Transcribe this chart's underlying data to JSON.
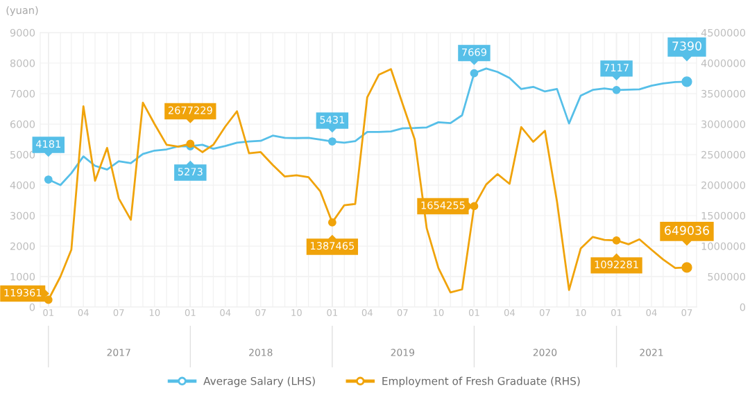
{
  "chart_data": {
    "type": "line",
    "ylabel": "(yuan)",
    "x": [
      "2017-01",
      "2017-02",
      "2017-03",
      "2017-04",
      "2017-05",
      "2017-06",
      "2017-07",
      "2017-08",
      "2017-09",
      "2017-10",
      "2017-11",
      "2017-12",
      "2018-01",
      "2018-02",
      "2018-03",
      "2018-04",
      "2018-05",
      "2018-06",
      "2018-07",
      "2018-08",
      "2018-09",
      "2018-10",
      "2018-11",
      "2018-12",
      "2019-01",
      "2019-02",
      "2019-03",
      "2019-04",
      "2019-05",
      "2019-06",
      "2019-07",
      "2019-08",
      "2019-09",
      "2019-10",
      "2019-11",
      "2019-12",
      "2020-01",
      "2020-02",
      "2020-03",
      "2020-04",
      "2020-05",
      "2020-06",
      "2020-07",
      "2020-08",
      "2020-09",
      "2020-10",
      "2020-11",
      "2020-12",
      "2021-01",
      "2021-02",
      "2021-03",
      "2021-04",
      "2021-05",
      "2021-06",
      "2021-07"
    ],
    "series": [
      {
        "name": "Average Salary (LHS)",
        "color": "#56bfe8",
        "axis": "y",
        "values": [
          4181,
          4000,
          4390,
          4940,
          4630,
          4510,
          4780,
          4720,
          5020,
          5130,
          5170,
          5270,
          5273,
          5320,
          5190,
          5280,
          5390,
          5430,
          5450,
          5620,
          5550,
          5540,
          5550,
          5490,
          5431,
          5390,
          5440,
          5740,
          5740,
          5760,
          5860,
          5870,
          5890,
          6060,
          6030,
          6290,
          7669,
          7820,
          7710,
          7510,
          7150,
          7220,
          7070,
          7150,
          6020,
          6930,
          7120,
          7170,
          7117,
          7130,
          7140,
          7260,
          7330,
          7380,
          7390
        ],
        "value_labels": [
          "4181",
          null,
          null,
          null,
          null,
          null,
          null,
          null,
          null,
          null,
          null,
          null,
          "5273",
          null,
          null,
          null,
          null,
          null,
          null,
          null,
          null,
          null,
          null,
          null,
          "5431",
          null,
          null,
          null,
          null,
          null,
          null,
          null,
          null,
          null,
          null,
          null,
          "7669",
          null,
          null,
          null,
          null,
          null,
          null,
          null,
          null,
          null,
          null,
          null,
          "7117",
          null,
          null,
          null,
          null,
          null,
          "7390"
        ]
      },
      {
        "name": "Employment of Fresh Graduate (RHS)",
        "color": "#f0a30a",
        "axis": "y2",
        "values": [
          119361,
          500000,
          940000,
          3290000,
          2070000,
          2610000,
          1780000,
          1430000,
          3350000,
          3000000,
          2660000,
          2630000,
          2677229,
          2540000,
          2660000,
          2960000,
          3210000,
          2520000,
          2540000,
          2330000,
          2140000,
          2160000,
          2130000,
          1900000,
          1387465,
          1670000,
          1690000,
          3440000,
          3810000,
          3900000,
          3330000,
          2750000,
          1290000,
          640000,
          240000,
          290000,
          1654255,
          2010000,
          2180000,
          2020000,
          2950000,
          2710000,
          2890000,
          1730000,
          280000,
          960000,
          1150000,
          1100000,
          1092281,
          1030000,
          1110000,
          940000,
          780000,
          640000,
          649036
        ],
        "value_labels": [
          "119361",
          null,
          null,
          null,
          null,
          null,
          null,
          null,
          null,
          null,
          null,
          null,
          "2677229",
          null,
          null,
          null,
          null,
          null,
          null,
          null,
          null,
          null,
          null,
          null,
          "1387465",
          null,
          null,
          null,
          null,
          null,
          null,
          null,
          null,
          null,
          null,
          null,
          "1654255",
          null,
          null,
          null,
          null,
          null,
          null,
          null,
          null,
          null,
          null,
          null,
          "1092281",
          null,
          null,
          null,
          null,
          null,
          "649036"
        ]
      }
    ],
    "xlim": [
      "2016-12-11",
      "2021-07-26"
    ],
    "xticks": [
      {
        "value": "2017-01",
        "label": "01"
      },
      {
        "value": "2017-02",
        "label": null
      },
      {
        "value": "2017-03",
        "label": null
      },
      {
        "value": "2017-04",
        "label": "04"
      },
      {
        "value": "2017-05",
        "label": null
      },
      {
        "value": "2017-06",
        "label": null
      },
      {
        "value": "2017-07",
        "label": "07"
      },
      {
        "value": "2017-08",
        "label": null
      },
      {
        "value": "2017-09",
        "label": null
      },
      {
        "value": "2017-10",
        "label": "10"
      },
      {
        "value": "2017-11",
        "label": null
      },
      {
        "value": "2017-12",
        "label": null
      },
      {
        "value": "2018-01",
        "label": "01"
      },
      {
        "value": "2018-02",
        "label": null
      },
      {
        "value": "2018-03",
        "label": null
      },
      {
        "value": "2018-04",
        "label": "04"
      },
      {
        "value": "2018-05",
        "label": null
      },
      {
        "value": "2018-06",
        "label": null
      },
      {
        "value": "2018-07",
        "label": "07"
      },
      {
        "value": "2018-08",
        "label": null
      },
      {
        "value": "2018-09",
        "label": null
      },
      {
        "value": "2018-10",
        "label": "10"
      },
      {
        "value": "2018-11",
        "label": null
      },
      {
        "value": "2018-12",
        "label": null
      },
      {
        "value": "2019-01",
        "label": "01"
      },
      {
        "value": "2019-02",
        "label": null
      },
      {
        "value": "2019-03",
        "label": null
      },
      {
        "value": "2019-04",
        "label": "04"
      },
      {
        "value": "2019-05",
        "label": null
      },
      {
        "value": "2019-06",
        "label": null
      },
      {
        "value": "2019-07",
        "label": "07"
      },
      {
        "value": "2019-08",
        "label": null
      },
      {
        "value": "2019-09",
        "label": null
      },
      {
        "value": "2019-10",
        "label": "10"
      },
      {
        "value": "2019-11",
        "label": null
      },
      {
        "value": "2019-12",
        "label": null
      },
      {
        "value": "2020-01",
        "label": "01"
      },
      {
        "value": "2020-02",
        "label": null
      },
      {
        "value": "2020-03",
        "label": null
      },
      {
        "value": "2020-04",
        "label": "04"
      },
      {
        "value": "2020-05",
        "label": null
      },
      {
        "value": "2020-06",
        "label": null
      },
      {
        "value": "2020-07",
        "label": "07"
      },
      {
        "value": "2020-08",
        "label": null
      },
      {
        "value": "2020-09",
        "label": null
      },
      {
        "value": "2020-10",
        "label": "10"
      },
      {
        "value": "2020-11",
        "label": null
      },
      {
        "value": "2020-12",
        "label": null
      },
      {
        "value": "2021-01",
        "label": "01"
      },
      {
        "value": "2021-02",
        "label": null
      },
      {
        "value": "2021-03",
        "label": null
      },
      {
        "value": "2021-04",
        "label": "04"
      },
      {
        "value": "2021-05",
        "label": null
      },
      {
        "value": "2021-06",
        "label": null
      },
      {
        "value": "2021-07",
        "label": "07"
      }
    ],
    "x2lim": [
      "2016-12-11",
      "2021-07-26"
    ],
    "x2ticks": [
      {
        "value": "2017-01",
        "label": null
      },
      {
        "value": "2017-07",
        "label": "2017"
      },
      {
        "value": "2018-01",
        "label": null
      },
      {
        "value": "2018-07",
        "label": "2018"
      },
      {
        "value": "2019-01",
        "label": null
      },
      {
        "value": "2019-07",
        "label": "2019"
      },
      {
        "value": "2020-01",
        "label": null
      },
      {
        "value": "2020-07",
        "label": "2020"
      },
      {
        "value": "2021-01",
        "label": null
      },
      {
        "value": "2021-04",
        "label": "2021"
      }
    ],
    "ylim": [
      0,
      9000
    ],
    "yticks": [
      0,
      1000,
      2000,
      3000,
      4000,
      5000,
      6000,
      7000,
      8000,
      9000
    ],
    "y2lim": [
      0,
      4500000
    ],
    "y2ticks": [
      0,
      500000,
      1000000,
      1500000,
      2000000,
      2500000,
      3000000,
      3500000,
      4000000,
      4500000
    ],
    "grid": true,
    "legend": "bottom",
    "line_style": "solid"
  }
}
